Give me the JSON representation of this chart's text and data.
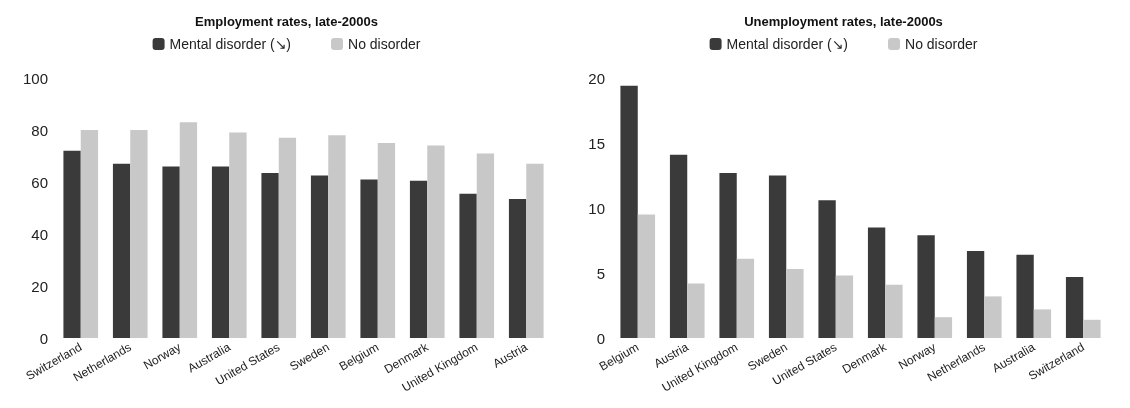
{
  "chart_data": [
    {
      "type": "bar",
      "title": "Employment rates, late-2000s",
      "categories": [
        "Switzerland",
        "Netherlands",
        "Norway",
        "Australia",
        "United States",
        "Sweden",
        "Belgium",
        "Denmark",
        "United Kingdom",
        "Austria"
      ],
      "series": [
        {
          "name": "Mental disorder (↘)",
          "color": "#3a3a3a",
          "values": [
            72,
            67,
            66,
            66,
            63.5,
            62.5,
            61,
            60.5,
            55.5,
            53.5
          ]
        },
        {
          "name": "No disorder",
          "color": "#c8c8c8",
          "values": [
            80,
            80,
            83,
            79,
            77,
            78,
            75,
            74,
            71,
            67
          ]
        }
      ],
      "ylim": [
        0,
        100
      ],
      "yticks": [
        0,
        20,
        40,
        60,
        80,
        100
      ],
      "grid": false,
      "legend": "top"
    },
    {
      "type": "bar",
      "title": "Unemployment rates, late-2000s",
      "categories": [
        "Belgium",
        "Austria",
        "United Kingdom",
        "Sweden",
        "United States",
        "Denmark",
        "Norway",
        "Netherlands",
        "Australia",
        "Switzerland"
      ],
      "series": [
        {
          "name": "Mental disorder (↘)",
          "color": "#3a3a3a",
          "values": [
            19.4,
            14.1,
            12.7,
            12.5,
            10.6,
            8.5,
            7.9,
            6.7,
            6.4,
            4.7
          ]
        },
        {
          "name": "No disorder",
          "color": "#c8c8c8",
          "values": [
            9.5,
            4.2,
            6.1,
            5.3,
            4.8,
            4.1,
            1.6,
            3.2,
            2.2,
            1.4
          ]
        }
      ],
      "ylim": [
        0,
        20
      ],
      "yticks": [
        0,
        5,
        10,
        15,
        20
      ],
      "grid": false,
      "legend": "top"
    }
  ]
}
